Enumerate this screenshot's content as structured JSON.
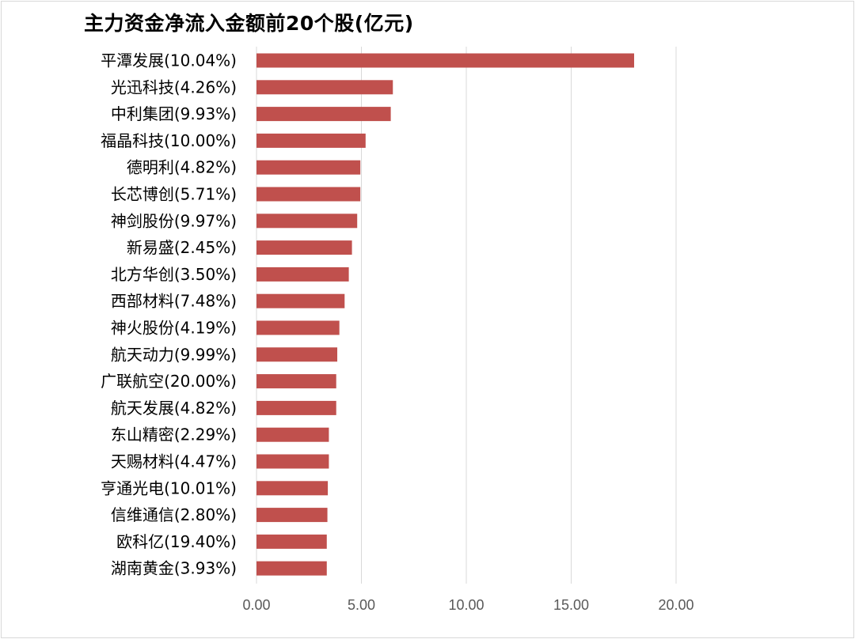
{
  "chart_data": {
    "type": "bar",
    "orientation": "horizontal",
    "title": "主力资金净流入金额前20个股(亿元)",
    "categories": [
      "平潭发展(10.04%)",
      "光迅科技(4.26%)",
      "中利集团(9.93%)",
      "福晶科技(10.00%)",
      "德明利(4.82%)",
      "长芯博创(5.71%)",
      "神剑股份(9.97%)",
      "新易盛(2.45%)",
      "北方华创(3.50%)",
      "西部材料(7.48%)",
      "神火股份(4.19%)",
      "航天动力(9.99%)",
      "广联航空(20.00%)",
      "航天发展(4.82%)",
      "东山精密(2.29%)",
      "天赐材料(4.47%)",
      "亨通光电(10.01%)",
      "信维通信(2.80%)",
      "欧科亿(19.40%)",
      "湖南黄金(3.93%)"
    ],
    "values": [
      18.0,
      6.5,
      6.4,
      5.2,
      4.95,
      4.95,
      4.8,
      4.55,
      4.4,
      4.2,
      3.95,
      3.85,
      3.8,
      3.8,
      3.45,
      3.45,
      3.4,
      3.38,
      3.35,
      3.35
    ],
    "xlim": [
      0,
      20
    ],
    "xticks": [
      "0.00",
      "5.00",
      "10.00",
      "15.00",
      "20.00"
    ],
    "grid": "vertical",
    "bar_color": "#c0504d",
    "gridline_color": "#d9d9d9",
    "legend": "none"
  }
}
